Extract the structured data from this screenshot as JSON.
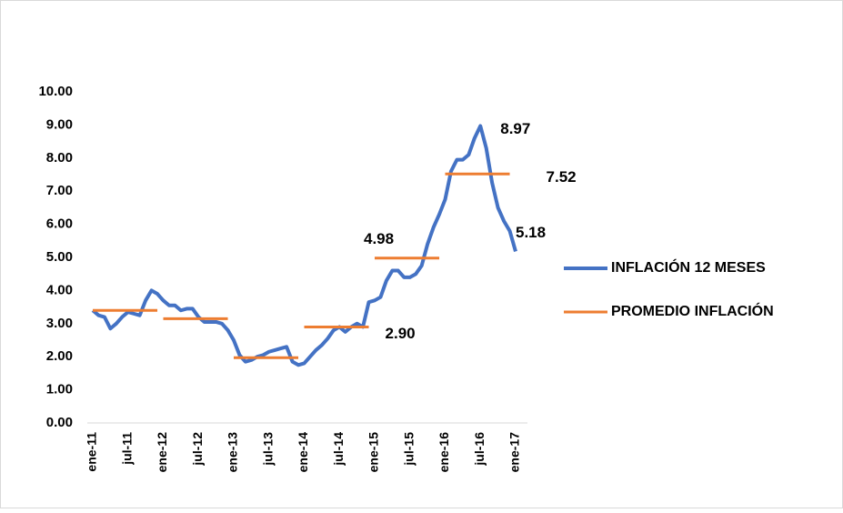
{
  "chart_data": {
    "type": "line",
    "categories": [
      "ene-11",
      null,
      null,
      null,
      null,
      null,
      "jul-11",
      null,
      null,
      null,
      null,
      null,
      "ene-12",
      null,
      null,
      null,
      null,
      null,
      "jul-12",
      null,
      null,
      null,
      null,
      null,
      "ene-13",
      null,
      null,
      null,
      null,
      null,
      "jul-13",
      null,
      null,
      null,
      null,
      null,
      "ene-14",
      null,
      null,
      null,
      null,
      null,
      "jul-14",
      null,
      null,
      null,
      null,
      null,
      "ene-15",
      null,
      null,
      null,
      null,
      null,
      "jul-15",
      null,
      null,
      null,
      null,
      null,
      "ene-16",
      null,
      null,
      null,
      null,
      null,
      "jul-16",
      null,
      null,
      null,
      null,
      null,
      "ene-17"
    ],
    "series": [
      {
        "name": "INFLACIÓN 12 MESES",
        "color": "#4472c4",
        "values": [
          3.4,
          3.25,
          3.2,
          2.85,
          3.0,
          3.2,
          3.35,
          3.3,
          3.25,
          3.7,
          4.0,
          3.9,
          3.7,
          3.55,
          3.55,
          3.4,
          3.45,
          3.45,
          3.2,
          3.05,
          3.05,
          3.05,
          3.0,
          2.8,
          2.5,
          2.05,
          1.85,
          1.9,
          2.0,
          2.05,
          2.15,
          2.2,
          2.25,
          2.3,
          1.85,
          1.75,
          1.8,
          2.0,
          2.2,
          2.35,
          2.55,
          2.8,
          2.9,
          2.75,
          2.9,
          3.0,
          2.9,
          3.65,
          3.7,
          3.8,
          4.3,
          4.6,
          4.6,
          4.4,
          4.4,
          4.5,
          4.75,
          5.4,
          5.9,
          6.3,
          6.75,
          7.6,
          7.95,
          7.95,
          8.1,
          8.6,
          8.97,
          8.3,
          7.25,
          6.5,
          6.1,
          5.8,
          5.18
        ],
        "value_labels": [
          null,
          null,
          null,
          null,
          null,
          null,
          null,
          null,
          null,
          null,
          null,
          null,
          null,
          null,
          null,
          null,
          null,
          null,
          null,
          null,
          null,
          null,
          null,
          null,
          null,
          null,
          null,
          null,
          null,
          null,
          null,
          null,
          null,
          null,
          null,
          null,
          null,
          null,
          null,
          null,
          null,
          null,
          null,
          null,
          null,
          null,
          null,
          null,
          null,
          null,
          null,
          null,
          null,
          null,
          null,
          null,
          null,
          null,
          null,
          null,
          null,
          null,
          null,
          null,
          null,
          null,
          "8.97",
          null,
          null,
          null,
          null,
          null,
          "5.18"
        ]
      },
      {
        "name": "PROMEDIO INFLACIÓN",
        "color": "#ed7d31",
        "values": [
          3.4,
          3.4,
          3.4,
          3.4,
          3.4,
          3.4,
          3.4,
          3.4,
          3.4,
          3.4,
          3.4,
          3.4,
          3.15,
          3.15,
          3.15,
          3.15,
          3.15,
          3.15,
          3.15,
          3.15,
          3.15,
          3.15,
          3.15,
          3.15,
          1.97,
          1.97,
          1.97,
          1.97,
          1.97,
          1.97,
          1.97,
          1.97,
          1.97,
          1.97,
          1.97,
          1.97,
          2.9,
          2.9,
          2.9,
          2.9,
          2.9,
          2.9,
          2.9,
          2.9,
          2.9,
          2.9,
          2.9,
          2.9,
          4.98,
          4.98,
          4.98,
          4.98,
          4.98,
          4.98,
          4.98,
          4.98,
          4.98,
          4.98,
          4.98,
          4.98,
          7.52,
          7.52,
          7.52,
          7.52,
          7.52,
          7.52,
          7.52,
          7.52,
          7.52,
          7.52,
          7.52,
          7.52,
          null
        ],
        "value_labels": [
          null,
          null,
          null,
          null,
          null,
          null,
          null,
          null,
          null,
          null,
          null,
          null,
          null,
          null,
          null,
          null,
          null,
          null,
          null,
          null,
          null,
          null,
          null,
          null,
          null,
          null,
          null,
          null,
          null,
          null,
          null,
          null,
          null,
          null,
          null,
          null,
          null,
          null,
          null,
          null,
          null,
          null,
          null,
          null,
          null,
          null,
          null,
          "2.90",
          "4.98",
          null,
          null,
          null,
          null,
          null,
          null,
          null,
          null,
          null,
          null,
          null,
          null,
          null,
          null,
          null,
          null,
          null,
          null,
          null,
          null,
          null,
          null,
          "7.52",
          null
        ]
      }
    ],
    "ylim": [
      0,
      10
    ],
    "yticks": [
      {
        "value": 0,
        "label": "0.00"
      },
      {
        "value": 1,
        "label": "1.00"
      },
      {
        "value": 2,
        "label": "2.00"
      },
      {
        "value": 3,
        "label": "3.00"
      },
      {
        "value": 4,
        "label": "4.00"
      },
      {
        "value": 5,
        "label": "5.00"
      },
      {
        "value": 6,
        "label": "6.00"
      },
      {
        "value": 7,
        "label": "7.00"
      },
      {
        "value": 8,
        "label": "8.00"
      },
      {
        "value": 9,
        "label": "9.00"
      },
      {
        "value": 10,
        "label": "10.00"
      }
    ],
    "grid": false,
    "legend": "right"
  }
}
